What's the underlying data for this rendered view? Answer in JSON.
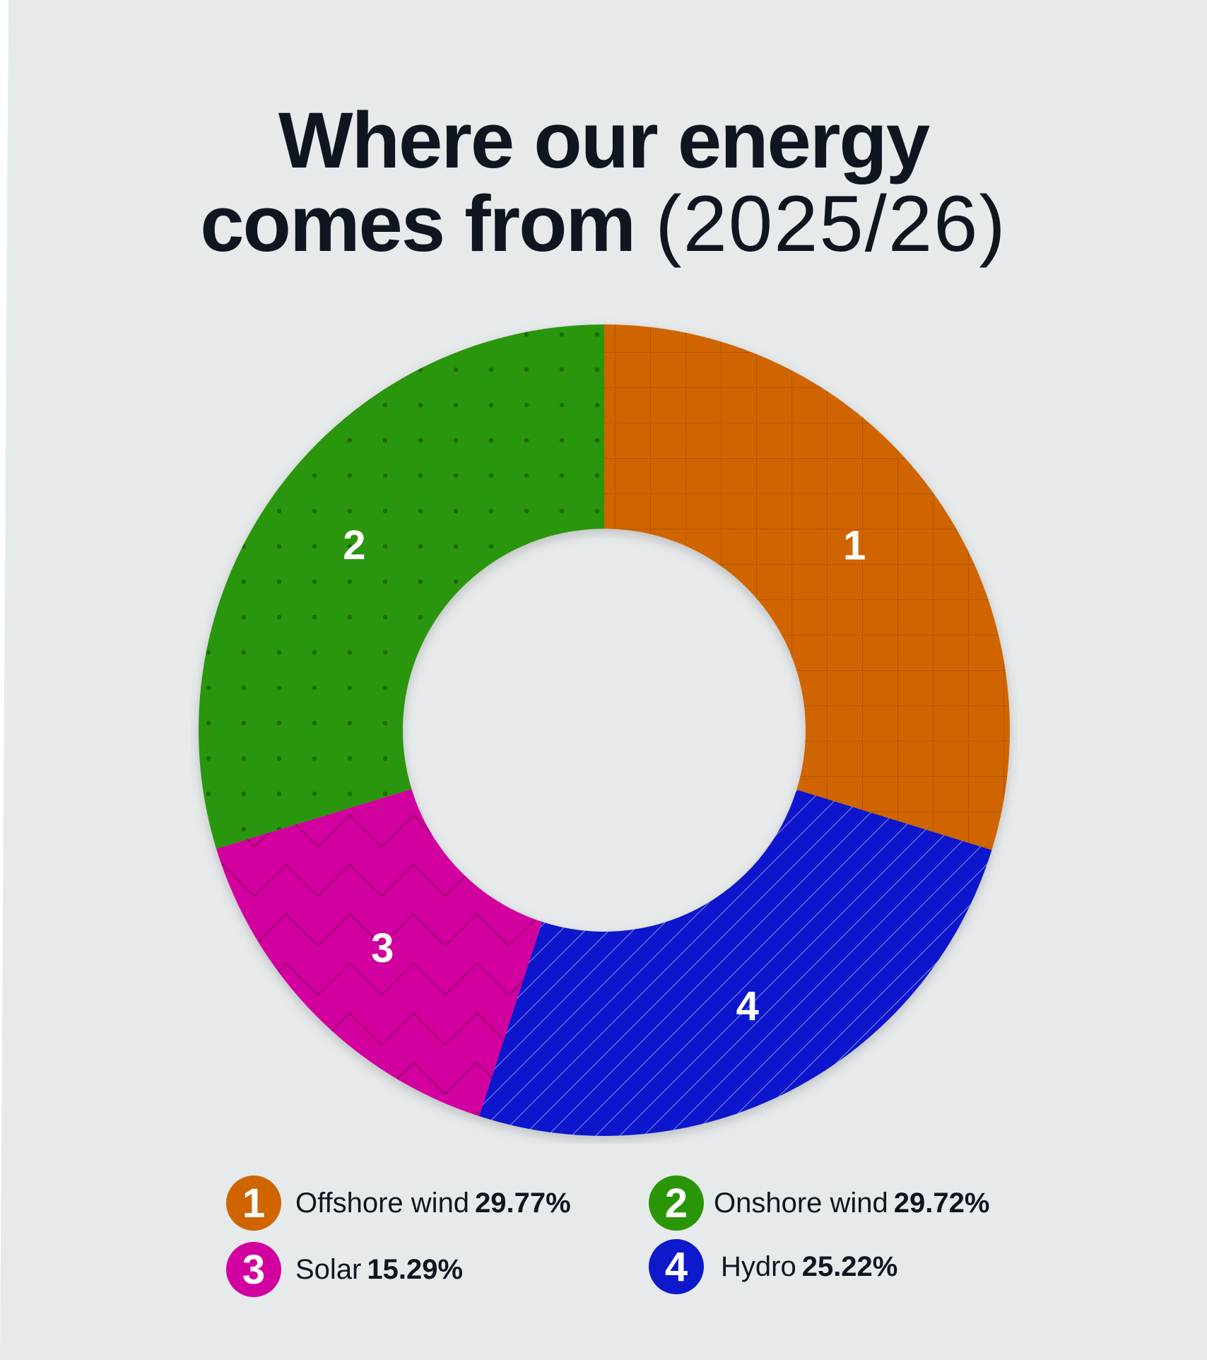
{
  "title": {
    "line1": "Where our energy",
    "line2_bold": "comes from",
    "line2_period": "(2025/26)"
  },
  "colors": {
    "background": "#e7eaeb",
    "text": "#0f1620",
    "offshore": "#d06500",
    "onshore": "#2a9607",
    "solar": "#d2009e",
    "hydro": "#0e19cc"
  },
  "chart_data": {
    "type": "donut",
    "title": "Where our energy comes from (2025/26)",
    "unit": "%",
    "slices": [
      {
        "id": "1",
        "label": "Offshore wind",
        "value": 29.77,
        "value_text": "29.77%",
        "color": "#d06500",
        "pattern": "grid"
      },
      {
        "id": "4",
        "label": "Hydro",
        "value": 25.22,
        "value_text": "25.22%",
        "color": "#0e19cc",
        "pattern": "diagonal-lines"
      },
      {
        "id": "3",
        "label": "Solar",
        "value": 15.29,
        "value_text": "15.29%",
        "color": "#d2009e",
        "pattern": "zigzag"
      },
      {
        "id": "2",
        "label": "Onshore wind",
        "value": 29.72,
        "value_text": "29.72%",
        "color": "#2a9607",
        "pattern": "dots"
      }
    ],
    "direction": "clockwise from top",
    "legend_placement": "bottom"
  },
  "legend": [
    {
      "badge": "1",
      "label": "Offshore wind",
      "value": "29.77%",
      "color": "#d06500"
    },
    {
      "badge": "2",
      "label": "Onshore wind",
      "value": "29.72%",
      "color": "#2a9607"
    },
    {
      "badge": "3",
      "label": "Solar",
      "value": "15.29%",
      "color": "#d2009e"
    },
    {
      "badge": "4",
      "label": "Hydro",
      "value": "25.22%",
      "color": "#0e19cc"
    }
  ]
}
